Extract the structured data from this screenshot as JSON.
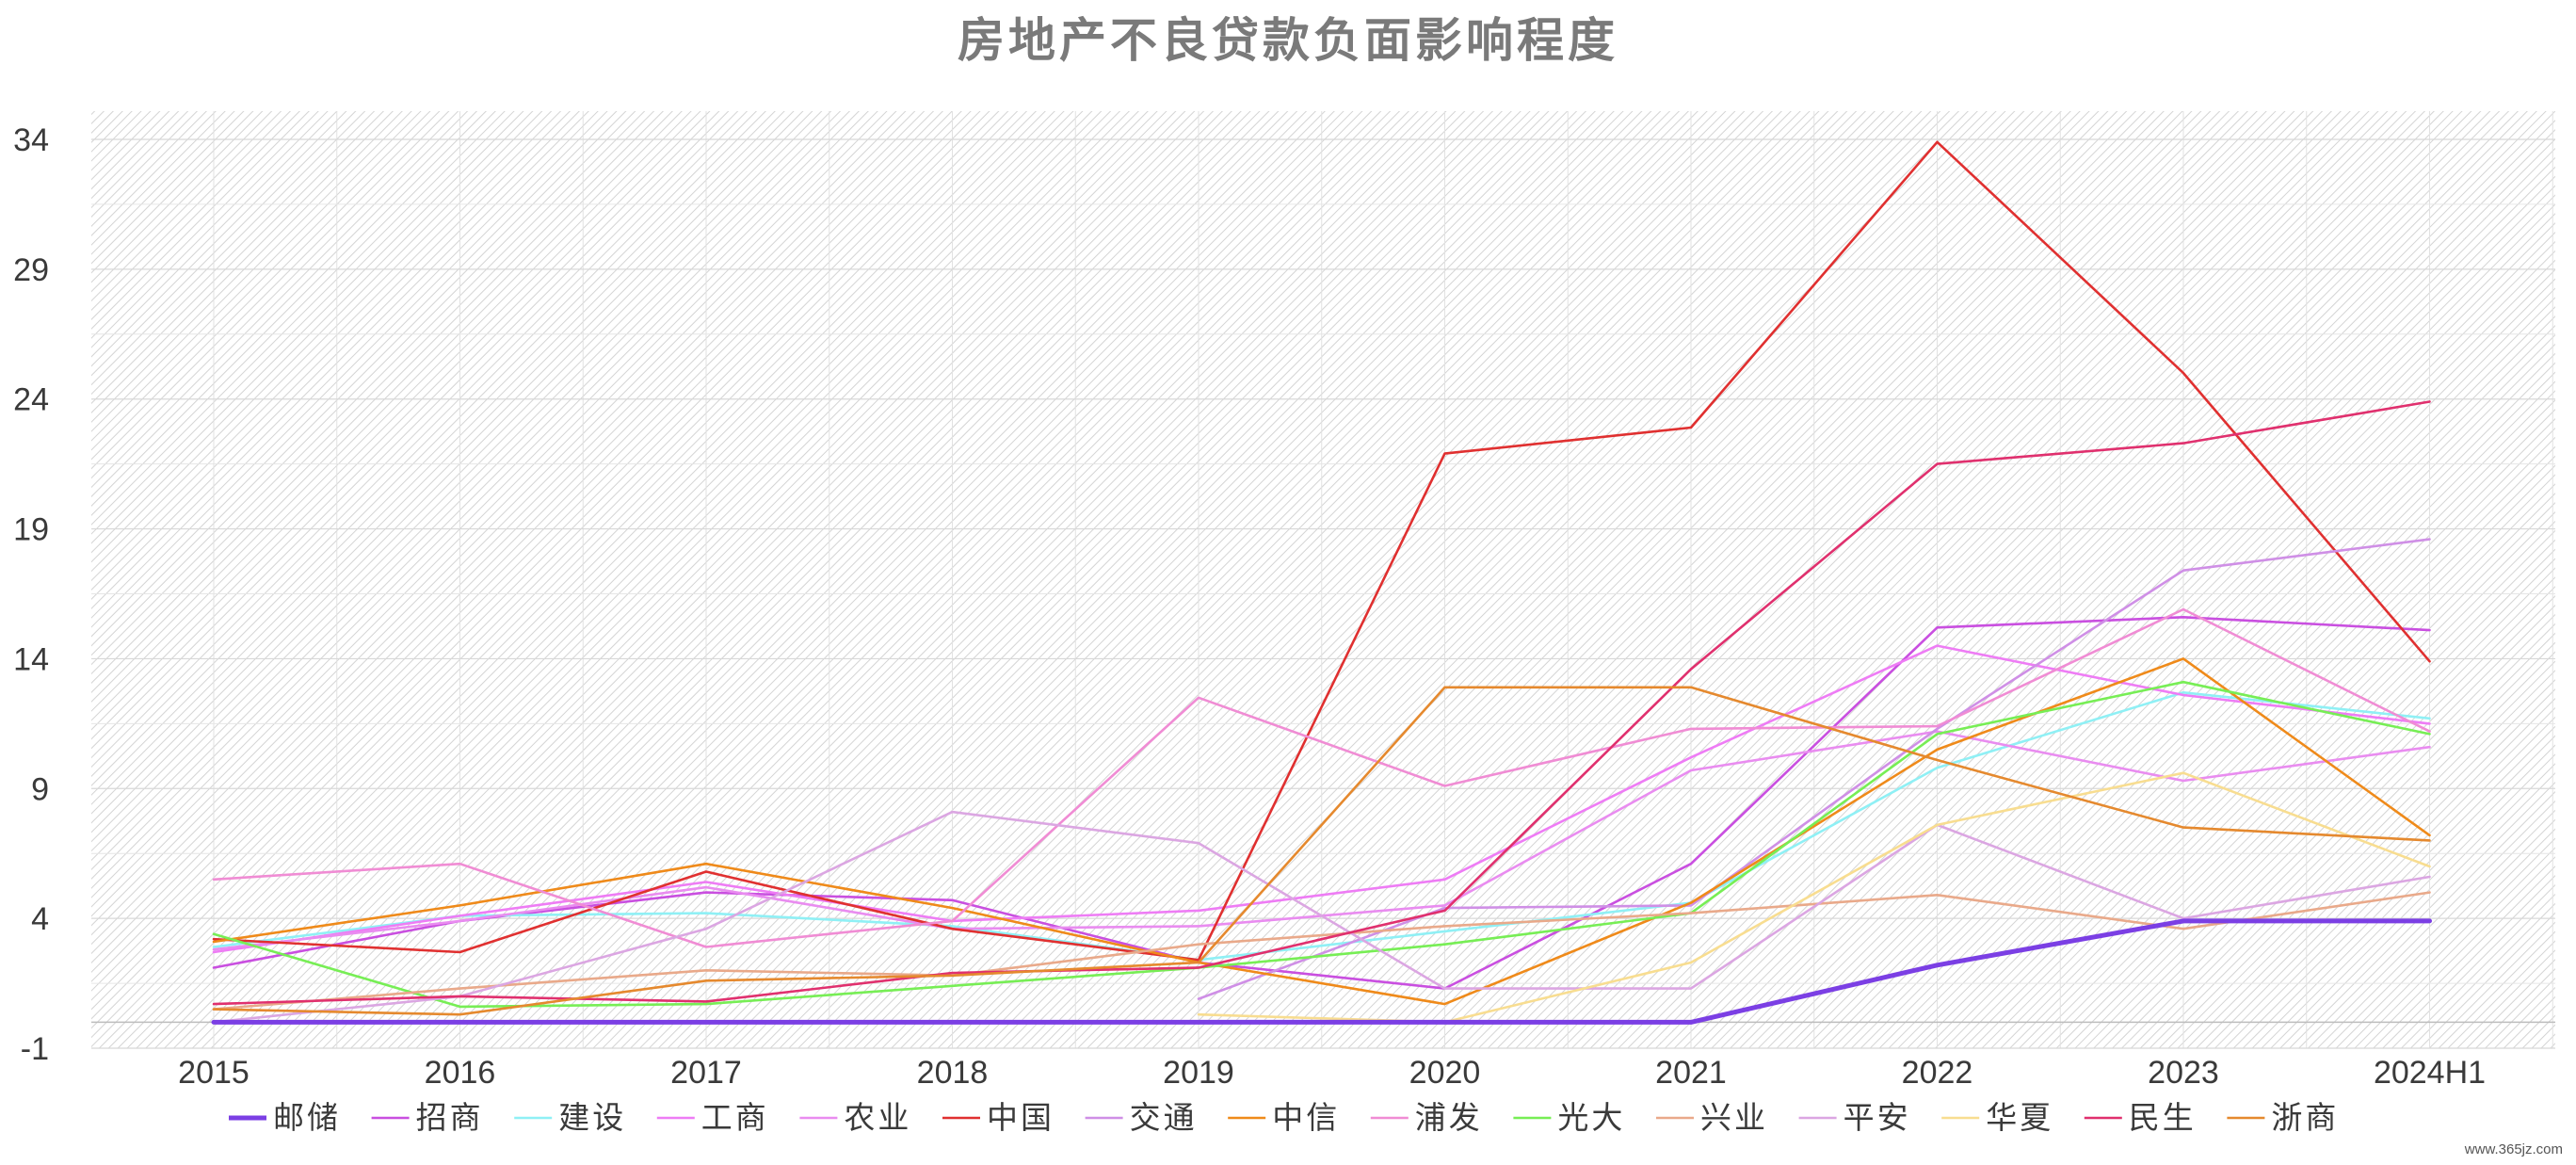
{
  "chart_data": {
    "type": "line",
    "title": "房地产不良贷款负面影响程度",
    "xlabel": "",
    "ylabel": "",
    "ylim": [
      -1,
      34
    ],
    "yticks": [
      -1,
      4,
      9,
      14,
      19,
      24,
      29,
      34
    ],
    "grid": true,
    "legend_position": "bottom",
    "categories": [
      "2015",
      "2016",
      "2017",
      "2018",
      "2019",
      "2020",
      "2021",
      "2022",
      "2023",
      "2024H1"
    ],
    "series": [
      {
        "name": "邮储",
        "color": "#7b3fe4",
        "values": [
          0,
          0,
          0,
          0,
          0,
          0,
          0,
          2.2,
          3.9,
          3.9
        ]
      },
      {
        "name": "招商",
        "color": "#c94fe0",
        "values": [
          2.1,
          3.9,
          5.0,
          4.7,
          2.3,
          1.3,
          6.1,
          15.2,
          15.6,
          15.1
        ]
      },
      {
        "name": "建设",
        "color": "#8ff0f5",
        "values": [
          2.9,
          4.1,
          4.2,
          3.7,
          2.4,
          3.5,
          4.6,
          9.8,
          12.7,
          11.7
        ]
      },
      {
        "name": "工商",
        "color": "#ee7cf5",
        "values": [
          2.7,
          4.1,
          5.4,
          3.9,
          4.3,
          5.5,
          10.2,
          14.5,
          12.6,
          11.5
        ]
      },
      {
        "name": "农业",
        "color": "#e98cf0",
        "values": [
          2.8,
          3.9,
          5.2,
          3.6,
          3.7,
          4.5,
          9.7,
          11.2,
          9.3,
          10.6
        ]
      },
      {
        "name": "中国",
        "color": "#e03030",
        "values": [
          3.2,
          2.7,
          5.8,
          3.6,
          2.4,
          21.9,
          22.9,
          33.9,
          25.0,
          13.9
        ]
      },
      {
        "name": "交通",
        "color": "#cf8fe6",
        "values": [
          null,
          null,
          null,
          null,
          0.9,
          4.4,
          4.5,
          11.3,
          17.4,
          18.6
        ]
      },
      {
        "name": "中信",
        "color": "#ef8a1a",
        "values": [
          3.1,
          4.5,
          6.1,
          4.4,
          2.3,
          0.7,
          4.6,
          10.5,
          14.0,
          7.2
        ]
      },
      {
        "name": "浦发",
        "color": "#f08cd4",
        "values": [
          5.5,
          6.1,
          2.9,
          3.9,
          12.5,
          9.1,
          11.3,
          11.4,
          15.9,
          11.2
        ]
      },
      {
        "name": "光大",
        "color": "#77ee55",
        "values": [
          3.4,
          0.6,
          0.7,
          1.4,
          2.1,
          3.0,
          4.2,
          11.1,
          13.1,
          11.1
        ]
      },
      {
        "name": "兴业",
        "color": "#e9a98a",
        "values": [
          0.5,
          1.3,
          2.0,
          1.8,
          3.0,
          3.7,
          4.2,
          4.9,
          3.6,
          5.0
        ]
      },
      {
        "name": "平安",
        "color": "#dba6e2",
        "values": [
          0.0,
          1.0,
          3.6,
          8.1,
          6.9,
          1.3,
          1.3,
          7.6,
          4.0,
          5.6
        ]
      },
      {
        "name": "华夏",
        "color": "#f8dd90",
        "values": [
          null,
          null,
          null,
          null,
          0.3,
          0.0,
          2.3,
          7.6,
          9.6,
          6.0
        ]
      },
      {
        "name": "民生",
        "color": "#e0306e",
        "values": [
          0.7,
          1.0,
          0.8,
          1.9,
          2.1,
          4.3,
          13.6,
          21.5,
          22.3,
          23.9
        ]
      },
      {
        "name": "浙商",
        "color": "#e5892e",
        "values": [
          0.5,
          0.3,
          1.6,
          1.8,
          2.3,
          12.9,
          12.9,
          10.1,
          7.5,
          7.0
        ]
      }
    ]
  },
  "watermark": "www.365jz.com"
}
